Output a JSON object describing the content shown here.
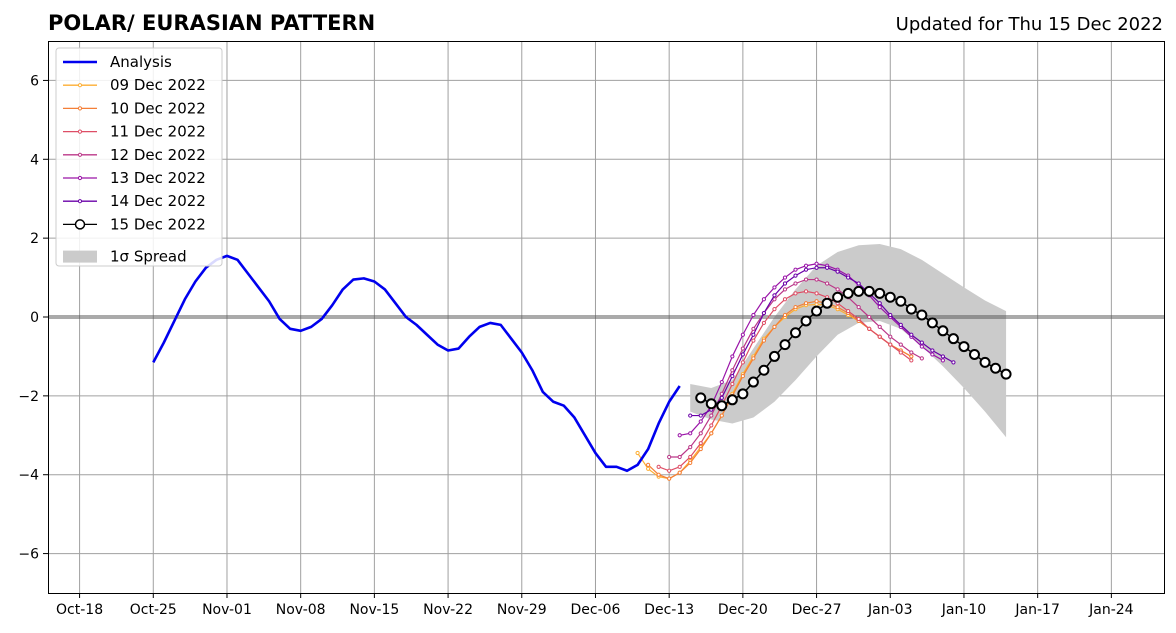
{
  "title": "POLAR/ EURASIAN  PATTERN",
  "subtitle": "Updated for Thu 15 Dec 2022",
  "chart_data": {
    "type": "line",
    "title": "POLAR/ EURASIAN  PATTERN",
    "xlabel": "",
    "ylabel": "",
    "ylim": [
      -7,
      7
    ],
    "xlim": [
      "2022-10-15",
      "2023-01-29"
    ],
    "grid": true,
    "legend_position": "top-left",
    "x_tick_labels": [
      "Oct-18",
      "Oct-25",
      "Nov-01",
      "Nov-08",
      "Nov-15",
      "Nov-22",
      "Nov-29",
      "Dec-06",
      "Dec-13",
      "Dec-20",
      "Dec-27",
      "Jan-03",
      "Jan-10",
      "Jan-17",
      "Jan-24"
    ],
    "x_tick_dates": [
      "2022-10-18",
      "2022-10-25",
      "2022-11-01",
      "2022-11-08",
      "2022-11-15",
      "2022-11-22",
      "2022-11-29",
      "2022-12-06",
      "2022-12-13",
      "2022-12-20",
      "2022-12-27",
      "2023-01-03",
      "2023-01-10",
      "2023-01-17",
      "2023-01-24"
    ],
    "y_tick_labels": [
      "−6",
      "−4",
      "−2",
      "0",
      "2",
      "4",
      "6"
    ],
    "y_tick_values": [
      -6,
      -4,
      -2,
      0,
      2,
      4,
      6
    ],
    "analysis": {
      "name": "Analysis",
      "color": "#0000ee",
      "start": "2022-10-25",
      "values": [
        -1.15,
        -0.65,
        -0.1,
        0.45,
        0.9,
        1.25,
        1.45,
        1.55,
        1.45,
        1.1,
        0.75,
        0.4,
        -0.05,
        -0.3,
        -0.35,
        -0.25,
        -0.05,
        0.3,
        0.7,
        0.95,
        0.98,
        0.9,
        0.7,
        0.35,
        0.0,
        -0.2,
        -0.45,
        -0.7,
        -0.85,
        -0.8,
        -0.5,
        -0.25,
        -0.15,
        -0.2,
        -0.55,
        -0.9,
        -1.35,
        -1.9,
        -2.15,
        -2.25,
        -2.55,
        -3.0,
        -3.45,
        -3.8,
        -3.8,
        -3.9,
        -3.75,
        -3.35,
        -2.7,
        -2.15,
        -1.75
      ]
    },
    "spread": {
      "name": "1σ Spread",
      "color": "#cbcbcb",
      "dates": [
        "2022-12-15",
        "2022-12-17",
        "2022-12-19",
        "2022-12-21",
        "2022-12-23",
        "2022-12-25",
        "2022-12-27",
        "2022-12-29",
        "2022-12-31",
        "2023-01-02",
        "2023-01-04",
        "2023-01-06",
        "2023-01-08",
        "2023-01-10",
        "2023-01-12",
        "2023-01-14"
      ],
      "upper": [
        -1.7,
        -1.8,
        -1.6,
        -0.8,
        0.0,
        0.7,
        1.3,
        1.65,
        1.82,
        1.85,
        1.72,
        1.45,
        1.1,
        0.75,
        0.42,
        0.15
      ],
      "lower": [
        -2.4,
        -2.6,
        -2.7,
        -2.55,
        -2.15,
        -1.6,
        -1.0,
        -0.45,
        -0.15,
        -0.1,
        -0.3,
        -0.75,
        -1.25,
        -1.8,
        -2.4,
        -3.05
      ]
    },
    "series": [
      {
        "name": "09 Dec 2022",
        "color": "#fdae33",
        "start": "2022-12-10",
        "values": [
          -3.45,
          -3.85,
          -4.05,
          -4.1,
          -3.95,
          -3.65,
          -3.3,
          -2.95,
          -2.5,
          -1.95,
          -1.45,
          -1.0,
          -0.55,
          -0.25,
          0.0,
          0.2,
          0.3,
          0.32,
          0.3,
          0.2,
          0.05,
          -0.1,
          -0.3,
          -0.5,
          -0.7,
          -0.85,
          -1.0
        ]
      },
      {
        "name": "10 Dec 2022",
        "color": "#f47f37",
        "start": "2022-12-11",
        "values": [
          -3.75,
          -4.0,
          -4.1,
          -3.95,
          -3.7,
          -3.35,
          -2.95,
          -2.5,
          -2.0,
          -1.5,
          -1.05,
          -0.6,
          -0.25,
          0.05,
          0.25,
          0.35,
          0.4,
          0.35,
          0.25,
          0.1,
          -0.1,
          -0.3,
          -0.5,
          -0.7,
          -0.85,
          -1.0
        ]
      },
      {
        "name": "11 Dec 2022",
        "color": "#de4e66",
        "start": "2022-12-12",
        "values": [
          -3.8,
          -3.9,
          -3.8,
          -3.55,
          -3.2,
          -2.75,
          -2.25,
          -1.7,
          -1.15,
          -0.6,
          -0.15,
          0.2,
          0.45,
          0.6,
          0.65,
          0.6,
          0.5,
          0.35,
          0.15,
          -0.05,
          -0.3,
          -0.5,
          -0.7,
          -0.9,
          -1.1
        ]
      },
      {
        "name": "12 Dec 2022",
        "color": "#bb3788",
        "start": "2022-12-13",
        "values": [
          -3.55,
          -3.55,
          -3.3,
          -2.95,
          -2.5,
          -1.95,
          -1.35,
          -0.8,
          -0.3,
          0.1,
          0.45,
          0.7,
          0.85,
          0.95,
          0.95,
          0.85,
          0.7,
          0.5,
          0.25,
          0.0,
          -0.25,
          -0.5,
          -0.7,
          -0.9,
          -1.05
        ]
      },
      {
        "name": "13 Dec 2022",
        "color": "#9a14a8",
        "start": "2022-12-14",
        "values": [
          -3.0,
          -2.95,
          -2.65,
          -2.25,
          -1.65,
          -1.0,
          -0.45,
          0.05,
          0.45,
          0.75,
          1.0,
          1.2,
          1.3,
          1.35,
          1.3,
          1.2,
          1.05,
          0.8,
          0.55,
          0.25,
          0.0,
          -0.25,
          -0.5,
          -0.75,
          -0.95,
          -1.1
        ]
      },
      {
        "name": "14 Dec 2022",
        "color": "#6a00a8",
        "start": "2022-12-15",
        "values": [
          -2.5,
          -2.5,
          -2.35,
          -2.05,
          -1.5,
          -0.95,
          -0.45,
          0.1,
          0.55,
          0.85,
          1.05,
          1.2,
          1.25,
          1.25,
          1.15,
          1.0,
          0.85,
          0.6,
          0.35,
          0.05,
          -0.2,
          -0.45,
          -0.65,
          -0.85,
          -1.0,
          -1.15
        ]
      },
      {
        "name": "15 Dec 2022",
        "color": "#000000",
        "start": "2022-12-16",
        "marker": "open-circle",
        "values": [
          -2.05,
          -2.2,
          -2.25,
          -2.1,
          -1.95,
          -1.65,
          -1.35,
          -1.0,
          -0.7,
          -0.4,
          -0.1,
          0.15,
          0.35,
          0.5,
          0.6,
          0.65,
          0.65,
          0.6,
          0.5,
          0.4,
          0.2,
          0.05,
          -0.15,
          -0.35,
          -0.55,
          -0.75,
          -0.95,
          -1.15,
          -1.3,
          -1.45
        ]
      }
    ]
  }
}
